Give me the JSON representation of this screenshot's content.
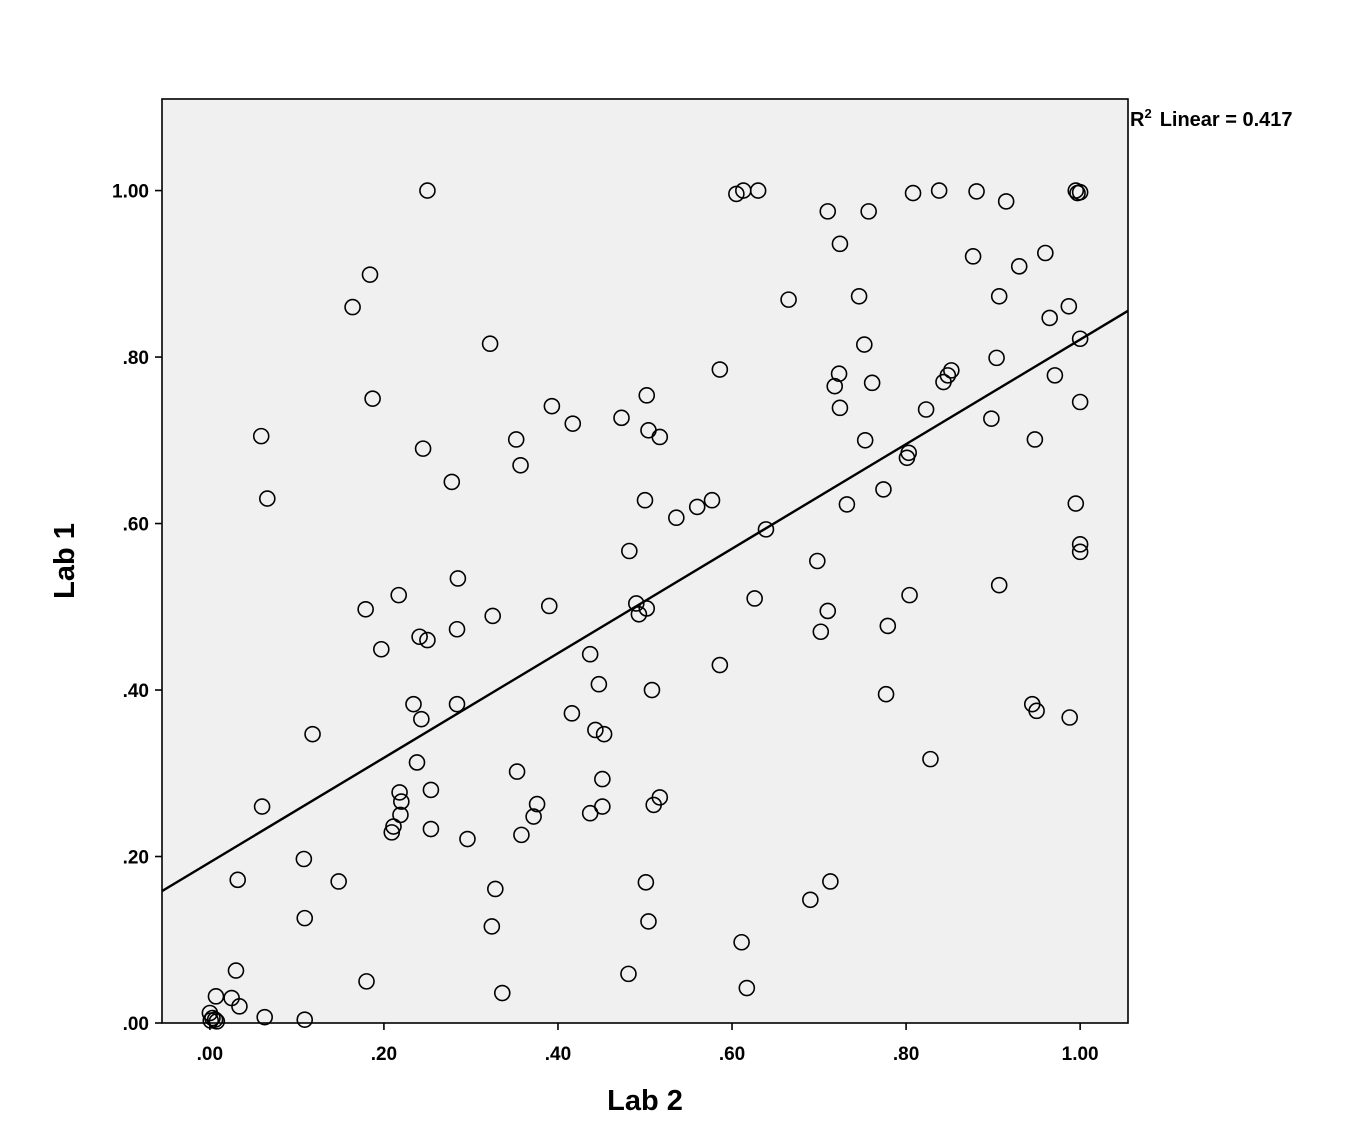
{
  "chart_data": {
    "type": "scatter",
    "xlabel": "Lab 2",
    "ylabel": "Lab 1",
    "xlim": [
      -0.055,
      1.055
    ],
    "ylim": [
      0.0,
      1.11
    ],
    "x_ticks": [
      ".00",
      ".20",
      ".40",
      ".60",
      ".80",
      "1.00"
    ],
    "y_ticks": [
      ".00",
      ".20",
      ".40",
      ".60",
      ".80",
      "1.00"
    ],
    "grid": false,
    "plot_background": "#f0f0f0",
    "fit_line": {
      "type": "linear",
      "intercept": 0.193,
      "slope": 0.628
    },
    "r2_label": {
      "prefix": "R",
      "superscript": "2",
      "text": "Linear = 0.417"
    },
    "points": [
      [
        0.25,
        1.0
      ],
      [
        0.605,
        0.996
      ],
      [
        0.613,
        1.0
      ],
      [
        0.63,
        1.0
      ],
      [
        0.71,
        0.975
      ],
      [
        0.757,
        0.975
      ],
      [
        0.808,
        0.997
      ],
      [
        0.838,
        1.0
      ],
      [
        0.881,
        0.999
      ],
      [
        0.915,
        0.987
      ],
      [
        0.995,
        1.0
      ],
      [
        0.997,
        0.997
      ],
      [
        1.0,
        0.998
      ],
      [
        0.724,
        0.936
      ],
      [
        0.877,
        0.921
      ],
      [
        0.93,
        0.909
      ],
      [
        0.96,
        0.925
      ],
      [
        0.184,
        0.899
      ],
      [
        0.164,
        0.86
      ],
      [
        0.665,
        0.869
      ],
      [
        0.746,
        0.873
      ],
      [
        0.907,
        0.873
      ],
      [
        0.987,
        0.861
      ],
      [
        0.965,
        0.847
      ],
      [
        0.322,
        0.816
      ],
      [
        0.752,
        0.815
      ],
      [
        1.0,
        0.822
      ],
      [
        0.586,
        0.785
      ],
      [
        0.723,
        0.78
      ],
      [
        0.718,
        0.765
      ],
      [
        0.761,
        0.769
      ],
      [
        0.852,
        0.784
      ],
      [
        0.848,
        0.778
      ],
      [
        0.843,
        0.77
      ],
      [
        0.904,
        0.799
      ],
      [
        0.971,
        0.778
      ],
      [
        0.187,
        0.75
      ],
      [
        0.393,
        0.741
      ],
      [
        0.502,
        0.754
      ],
      [
        0.724,
        0.739
      ],
      [
        0.823,
        0.737
      ],
      [
        0.898,
        0.726
      ],
      [
        1.0,
        0.746
      ],
      [
        0.417,
        0.72
      ],
      [
        0.473,
        0.727
      ],
      [
        0.504,
        0.712
      ],
      [
        0.517,
        0.704
      ],
      [
        0.059,
        0.705
      ],
      [
        0.352,
        0.701
      ],
      [
        0.753,
        0.7
      ],
      [
        0.948,
        0.701
      ],
      [
        0.245,
        0.69
      ],
      [
        0.357,
        0.67
      ],
      [
        0.801,
        0.679
      ],
      [
        0.803,
        0.685
      ],
      [
        0.066,
        0.63
      ],
      [
        0.278,
        0.65
      ],
      [
        0.5,
        0.628
      ],
      [
        0.577,
        0.628
      ],
      [
        0.536,
        0.607
      ],
      [
        0.56,
        0.62
      ],
      [
        0.732,
        0.623
      ],
      [
        0.774,
        0.641
      ],
      [
        0.639,
        0.593
      ],
      [
        0.995,
        0.624
      ],
      [
        1.0,
        0.575
      ],
      [
        1.0,
        0.566
      ],
      [
        0.482,
        0.567
      ],
      [
        0.285,
        0.534
      ],
      [
        0.698,
        0.555
      ],
      [
        0.217,
        0.514
      ],
      [
        0.179,
        0.497
      ],
      [
        0.39,
        0.501
      ],
      [
        0.49,
        0.504
      ],
      [
        0.502,
        0.498
      ],
      [
        0.493,
        0.491
      ],
      [
        0.626,
        0.51
      ],
      [
        0.71,
        0.495
      ],
      [
        0.804,
        0.514
      ],
      [
        0.907,
        0.526
      ],
      [
        0.325,
        0.489
      ],
      [
        0.284,
        0.473
      ],
      [
        0.702,
        0.47
      ],
      [
        0.779,
        0.477
      ],
      [
        0.241,
        0.464
      ],
      [
        0.25,
        0.46
      ],
      [
        0.197,
        0.449
      ],
      [
        0.437,
        0.443
      ],
      [
        0.586,
        0.43
      ],
      [
        0.447,
        0.407
      ],
      [
        0.508,
        0.4
      ],
      [
        0.777,
        0.395
      ],
      [
        0.234,
        0.383
      ],
      [
        0.284,
        0.383
      ],
      [
        0.243,
        0.365
      ],
      [
        0.416,
        0.372
      ],
      [
        0.945,
        0.383
      ],
      [
        0.95,
        0.375
      ],
      [
        0.988,
        0.367
      ],
      [
        0.118,
        0.347
      ],
      [
        0.443,
        0.352
      ],
      [
        0.453,
        0.347
      ],
      [
        0.238,
        0.313
      ],
      [
        0.828,
        0.317
      ],
      [
        0.353,
        0.302
      ],
      [
        0.451,
        0.293
      ],
      [
        0.218,
        0.277
      ],
      [
        0.22,
        0.266
      ],
      [
        0.254,
        0.28
      ],
      [
        0.06,
        0.26
      ],
      [
        0.376,
        0.263
      ],
      [
        0.437,
        0.252
      ],
      [
        0.451,
        0.26
      ],
      [
        0.51,
        0.262
      ],
      [
        0.517,
        0.271
      ],
      [
        0.219,
        0.25
      ],
      [
        0.211,
        0.236
      ],
      [
        0.209,
        0.229
      ],
      [
        0.254,
        0.233
      ],
      [
        0.372,
        0.248
      ],
      [
        0.358,
        0.226
      ],
      [
        0.296,
        0.221
      ],
      [
        0.108,
        0.197
      ],
      [
        0.032,
        0.172
      ],
      [
        0.148,
        0.17
      ],
      [
        0.328,
        0.161
      ],
      [
        0.501,
        0.169
      ],
      [
        0.713,
        0.17
      ],
      [
        0.69,
        0.148
      ],
      [
        0.109,
        0.126
      ],
      [
        0.324,
        0.116
      ],
      [
        0.504,
        0.122
      ],
      [
        0.611,
        0.097
      ],
      [
        0.03,
        0.063
      ],
      [
        0.481,
        0.059
      ],
      [
        0.18,
        0.05
      ],
      [
        0.336,
        0.036
      ],
      [
        0.617,
        0.042
      ],
      [
        0.007,
        0.032
      ],
      [
        0.025,
        0.03
      ],
      [
        0.034,
        0.02
      ],
      [
        0.063,
        0.007
      ],
      [
        0.109,
        0.004
      ],
      [
        0.0,
        0.012
      ],
      [
        0.003,
        0.006
      ],
      [
        0.006,
        0.004
      ],
      [
        0.001,
        0.003
      ],
      [
        0.008,
        0.002
      ]
    ]
  }
}
